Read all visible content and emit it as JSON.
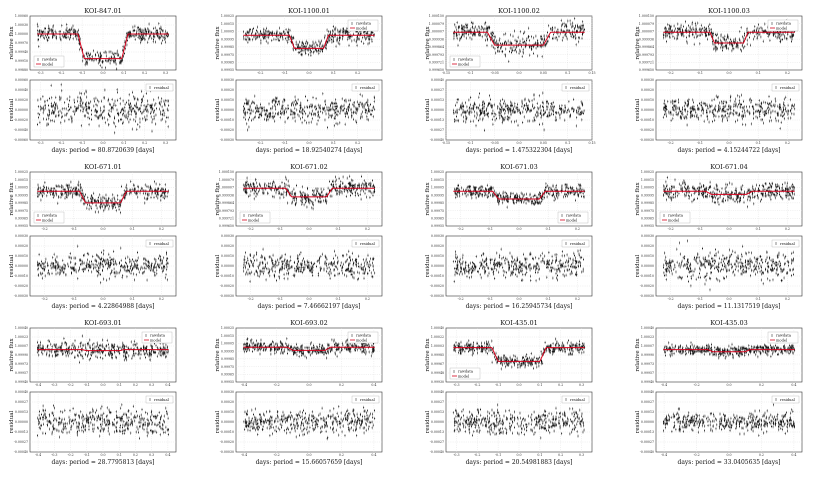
{
  "labels": {
    "flux_ylabel": "relative flux",
    "resid_ylabel": "residual",
    "legend_data": "rawdata",
    "legend_model": "model",
    "legend_resid": "residual"
  },
  "colors": {
    "points": "#111111",
    "model": "#d6001c",
    "grid": "#d9d9d9",
    "axes": "#333333"
  },
  "chart_data": [
    {
      "type": "scatter",
      "title": "KOI-847.01",
      "xlabel": "days: period = 80.8720639 [days]",
      "xlim": [
        -0.35,
        0.35
      ],
      "xticks": [
        -0.3,
        -0.2,
        -0.1,
        0.0,
        0.1,
        0.2,
        0.3
      ],
      "flux": {
        "ylim": [
          0.9988,
          1.0006
        ],
        "baseline": 1.0,
        "depth": 0.00082,
        "t_half": 0.09,
        "ingress": 0.03,
        "scatter": 0.00012,
        "ntick": 6
      },
      "resid": {
        "ylim": [
          -0.0006,
          0.0006
        ],
        "scatter": 0.00016,
        "ntick": 6
      },
      "legend": "bottom-left"
    },
    {
      "type": "scatter",
      "title": "KOI-1100.01",
      "xlabel": "days: period = 18.92540274 [days]",
      "xlim": [
        -0.3,
        0.3
      ],
      "xticks": [
        -0.2,
        -0.1,
        0.0,
        0.1,
        0.2
      ],
      "flux": {
        "ylim": [
          0.99955,
          1.00025
        ],
        "baseline": 1.0,
        "depth": 0.00017,
        "t_half": 0.06,
        "ingress": 0.02,
        "scatter": 5e-05,
        "ntick": 7
      },
      "resid": {
        "ylim": [
          -0.0003,
          0.0003
        ],
        "scatter": 6e-05,
        "ntick": 6
      },
      "legend": "top-right"
    },
    {
      "type": "scatter",
      "title": "KOI-1100.02",
      "xlabel": "days: period = 1.475322304 [days]",
      "xlim": [
        -0.15,
        0.15
      ],
      "xticks": [
        -0.15,
        -0.1,
        -0.05,
        0.0,
        0.05,
        0.1,
        0.15
      ],
      "flux": {
        "ylim": [
          0.99965,
          1.00015
        ],
        "baseline": 1.0,
        "depth": 0.00012,
        "t_half": 0.05,
        "ingress": 0.015,
        "scatter": 5e-05,
        "ntick": 7
      },
      "resid": {
        "ylim": [
          -0.0004,
          0.0004
        ],
        "scatter": 8e-05,
        "ntick": 6
      },
      "legend": "bottom-left"
    },
    {
      "type": "scatter",
      "title": "KOI-1100.03",
      "xlabel": "days: period = 4.15244722 [days]",
      "xlim": [
        -0.25,
        0.25
      ],
      "xticks": [
        -0.2,
        -0.1,
        0.0,
        0.1,
        0.2
      ],
      "flux": {
        "ylim": [
          0.99965,
          1.00015
        ],
        "baseline": 1.0,
        "depth": 0.0001,
        "t_half": 0.05,
        "ingress": 0.015,
        "scatter": 4e-05,
        "ntick": 7
      },
      "resid": {
        "ylim": [
          -0.0003,
          0.0003
        ],
        "scatter": 6e-05,
        "ntick": 6
      },
      "legend": "top-right"
    },
    {
      "type": "scatter",
      "title": "KOI-671.01",
      "xlabel": "days: period = 4.22864988 [days]",
      "xlim": [
        -0.25,
        0.25
      ],
      "xticks": [
        -0.2,
        -0.1,
        0.0,
        0.1,
        0.2
      ],
      "flux": {
        "ylim": [
          0.99955,
          1.00025
        ],
        "baseline": 1.0,
        "depth": 0.00015,
        "t_half": 0.06,
        "ingress": 0.02,
        "scatter": 5e-05,
        "ntick": 7
      },
      "resid": {
        "ylim": [
          -0.0003,
          0.0003
        ],
        "scatter": 6e-05,
        "ntick": 6
      },
      "legend": "bottom-left"
    },
    {
      "type": "scatter",
      "title": "KOI-671.02",
      "xlabel": "days: period = 7.46662197 [days]",
      "xlim": [
        -0.25,
        0.25
      ],
      "xticks": [
        -0.2,
        -0.1,
        0.0,
        0.1,
        0.2
      ],
      "flux": {
        "ylim": [
          0.99965,
          1.00015
        ],
        "baseline": 1.0,
        "depth": 8e-05,
        "t_half": 0.06,
        "ingress": 0.02,
        "scatter": 4e-05,
        "ntick": 7
      },
      "resid": {
        "ylim": [
          -0.0003,
          0.0003
        ],
        "scatter": 6e-05,
        "ntick": 6
      },
      "legend": "bottom-left"
    },
    {
      "type": "scatter",
      "title": "KOI-671.03",
      "xlabel": "days: period = 16.25945734 [days]",
      "xlim": [
        -0.25,
        0.25
      ],
      "xticks": [
        -0.2,
        -0.1,
        0.0,
        0.1,
        0.2
      ],
      "flux": {
        "ylim": [
          0.99955,
          1.00025
        ],
        "baseline": 1.0,
        "depth": 0.0001,
        "t_half": 0.07,
        "ingress": 0.02,
        "scatter": 4e-05,
        "ntick": 7
      },
      "resid": {
        "ylim": [
          -0.0003,
          0.0003
        ],
        "scatter": 6e-05,
        "ntick": 6
      },
      "legend": "bottom-right"
    },
    {
      "type": "scatter",
      "title": "KOI-671.04",
      "xlabel": "days: period = 11.1317519 [days]",
      "xlim": [
        -0.25,
        0.25
      ],
      "xticks": [
        -0.2,
        -0.1,
        0.0,
        0.1,
        0.2
      ],
      "flux": {
        "ylim": [
          0.99955,
          1.00025
        ],
        "baseline": 1.0,
        "depth": 4e-05,
        "t_half": 0.06,
        "ingress": 0.02,
        "scatter": 6e-05,
        "ntick": 7
      },
      "resid": {
        "ylim": [
          -0.0003,
          0.0003
        ],
        "scatter": 7e-05,
        "ntick": 6
      },
      "legend": "bottom-left"
    },
    {
      "type": "scatter",
      "title": "KOI-693.01",
      "xlabel": "days: period = 28.7795813 [days]",
      "xlim": [
        -0.45,
        0.45
      ],
      "xticks": [
        -0.4,
        -0.3,
        -0.2,
        -0.1,
        0.0,
        0.1,
        0.2,
        0.3,
        0.4
      ],
      "flux": {
        "ylim": [
          0.9994,
          1.0004
        ],
        "baseline": 1.0,
        "depth": 2e-05,
        "t_half": 0.1,
        "ingress": 0.03,
        "scatter": 8e-05,
        "ntick": 6
      },
      "resid": {
        "ylim": [
          -0.0004,
          0.0004
        ],
        "scatter": 8e-05,
        "ntick": 6
      },
      "legend": "top-right"
    },
    {
      "type": "scatter",
      "title": "KOI-693.02",
      "xlabel": "days: period = 15.66057659 [days]",
      "xlim": [
        -0.45,
        0.45
      ],
      "xticks": [
        -0.4,
        -0.2,
        0.0,
        0.2,
        0.4
      ],
      "flux": {
        "ylim": [
          0.99955,
          1.00025
        ],
        "baseline": 1.0,
        "depth": 4e-05,
        "t_half": 0.1,
        "ingress": 0.03,
        "scatter": 4e-05,
        "ntick": 7
      },
      "resid": {
        "ylim": [
          -0.0003,
          0.0003
        ],
        "scatter": 6e-05,
        "ntick": 6
      },
      "legend": "top-right"
    },
    {
      "type": "scatter",
      "title": "KOI-435.01",
      "xlabel": "days: period = 20.54981883 [days]",
      "xlim": [
        -0.35,
        0.35
      ],
      "xticks": [
        -0.3,
        -0.2,
        -0.1,
        0.0,
        0.1,
        0.2,
        0.3
      ],
      "flux": {
        "ylim": [
          0.9993,
          1.0004
        ],
        "baseline": 1.0,
        "depth": 0.00028,
        "t_half": 0.1,
        "ingress": 0.03,
        "scatter": 6e-05,
        "ntick": 6
      },
      "resid": {
        "ylim": [
          -0.0004,
          0.0004
        ],
        "scatter": 8e-05,
        "ntick": 6
      },
      "legend": "bottom-left"
    },
    {
      "type": "scatter",
      "title": "KOI-435.03",
      "xlabel": "days: period = 33.0405635 [days]",
      "xlim": [
        -0.45,
        0.45
      ],
      "xticks": [
        -0.4,
        -0.2,
        0.0,
        0.2,
        0.4
      ],
      "flux": {
        "ylim": [
          0.9994,
          1.0004
        ],
        "baseline": 1.0,
        "depth": 4e-05,
        "t_half": 0.1,
        "ingress": 0.03,
        "scatter": 5e-05,
        "ntick": 6
      },
      "resid": {
        "ylim": [
          -0.0004,
          0.0004
        ],
        "scatter": 6e-05,
        "ntick": 6
      },
      "legend": "top-right"
    }
  ]
}
